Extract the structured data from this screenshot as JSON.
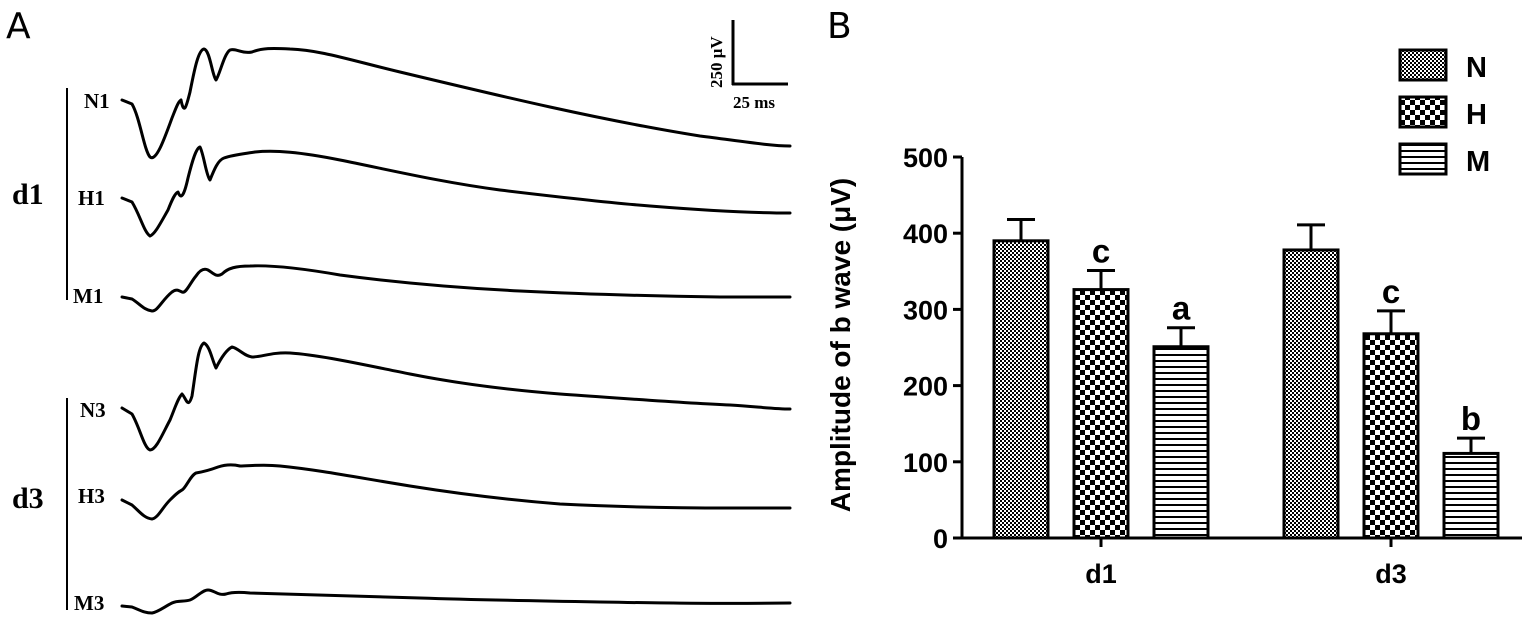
{
  "panel_a": {
    "letter": "A",
    "scale_bar": {
      "amplitude_label": "250 μV",
      "time_label": "25 ms"
    },
    "groups": [
      {
        "label": "d1",
        "traces": [
          {
            "label": "N1",
            "shape": "large"
          },
          {
            "label": "H1",
            "shape": "medium"
          },
          {
            "label": "M1",
            "shape": "small"
          }
        ]
      },
      {
        "label": "d3",
        "traces": [
          {
            "label": "N3",
            "shape": "large"
          },
          {
            "label": "H3",
            "shape": "medium"
          },
          {
            "label": "M3",
            "shape": "tiny"
          }
        ]
      }
    ]
  },
  "panel_b": {
    "letter": "B"
  },
  "chart_data": {
    "type": "bar",
    "categories": [
      "d1",
      "d3"
    ],
    "series": [
      {
        "name": "N",
        "values": [
          390,
          378
        ],
        "errors": [
          28,
          33
        ],
        "significance": [
          "",
          ""
        ],
        "pattern": "dense-check"
      },
      {
        "name": "H",
        "values": [
          326,
          268
        ],
        "errors": [
          25,
          30
        ],
        "significance": [
          "c",
          "c"
        ],
        "pattern": "checker"
      },
      {
        "name": "M",
        "values": [
          251,
          111
        ],
        "errors": [
          25,
          20
        ],
        "significance": [
          "a",
          "b"
        ],
        "pattern": "horizontal-stripes"
      }
    ],
    "ylabel": "Amplitude of b wave (μV)",
    "ylim": [
      0,
      500
    ],
    "yticks": [
      0,
      100,
      200,
      300,
      400,
      500
    ],
    "legend_position": "top-right",
    "grid": false
  }
}
